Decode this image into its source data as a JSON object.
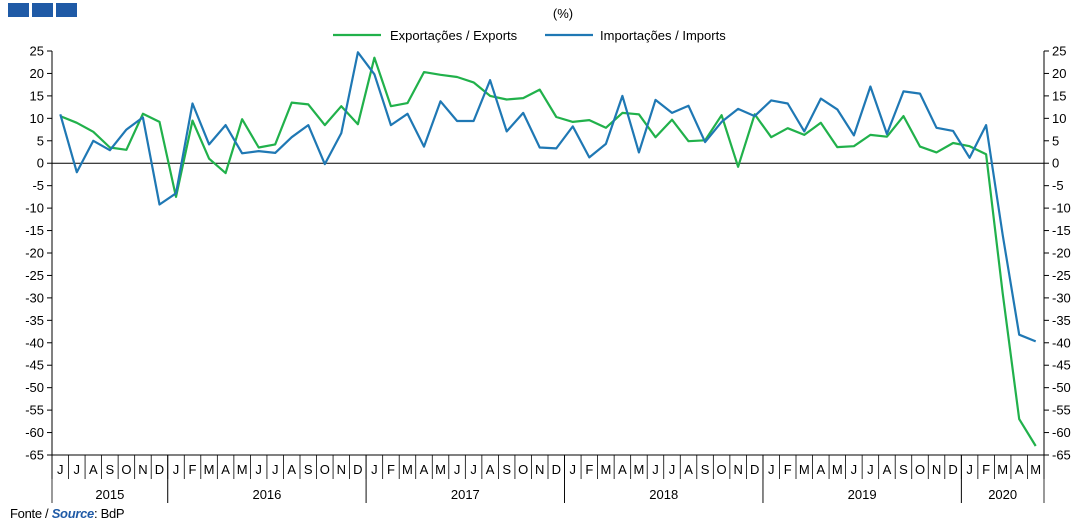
{
  "source": {
    "fonte": "Fonte / ",
    "label": "Source",
    "value": ": BdP"
  },
  "chart_data": {
    "type": "line",
    "unit_label": "(%)",
    "ylim": [
      -65,
      25
    ],
    "yticks": [
      25,
      20,
      15,
      10,
      5,
      0,
      -5,
      -10,
      -15,
      -20,
      -25,
      -30,
      -35,
      -40,
      -45,
      -50,
      -55,
      -60,
      -65
    ],
    "grid": false,
    "legend_position": "top-center",
    "month_labels": [
      "J",
      "J",
      "A",
      "S",
      "O",
      "N",
      "D",
      "J",
      "F",
      "M",
      "A",
      "M",
      "J",
      "J",
      "A",
      "S",
      "O",
      "N",
      "D",
      "J",
      "F",
      "M",
      "A",
      "M",
      "J",
      "J",
      "A",
      "S",
      "O",
      "N",
      "D",
      "J",
      "F",
      "M",
      "A",
      "M",
      "J",
      "J",
      "A",
      "S",
      "O",
      "N",
      "D",
      "J",
      "F",
      "M",
      "A",
      "M",
      "J",
      "J",
      "A",
      "S",
      "O",
      "N",
      "D",
      "J",
      "F",
      "M",
      "A",
      "M"
    ],
    "years": [
      {
        "label": "2015",
        "start": 0,
        "end": 6
      },
      {
        "label": "2016",
        "start": 7,
        "end": 18
      },
      {
        "label": "2017",
        "start": 19,
        "end": 30
      },
      {
        "label": "2018",
        "start": 31,
        "end": 42
      },
      {
        "label": "2019",
        "start": 43,
        "end": 54
      },
      {
        "label": "2020",
        "start": 55,
        "end": 59
      }
    ],
    "series": [
      {
        "name": "Exportações / Exports",
        "color": "#21b14b",
        "values": [
          10.5,
          9,
          7,
          3.5,
          3,
          11,
          9.2,
          -7.5,
          9.5,
          1,
          -2.2,
          9.8,
          3.5,
          4.2,
          13.5,
          13.1,
          8.5,
          12.7,
          8.7,
          23.5,
          12.7,
          13.4,
          20.3,
          19.7,
          19.2,
          18,
          15,
          14.2,
          14.5,
          16.4,
          10.3,
          9.2,
          9.6,
          7.9,
          11.2,
          10.9,
          5.8,
          9.7,
          4.9,
          5.1,
          10.7,
          -0.8,
          10.9,
          5.8,
          7.8,
          6.3,
          9,
          3.6,
          3.8,
          6.3,
          5.9,
          10.5,
          3.7,
          2.4,
          4.5,
          3.8,
          2,
          -29,
          -57,
          -63
        ]
      },
      {
        "name": "Importações / Imports",
        "color": "#1f78b4",
        "values": [
          10.9,
          -2,
          5,
          2.9,
          7.5,
          10.2,
          -9.2,
          -6.7,
          13.3,
          4.2,
          8.5,
          2.2,
          2.7,
          2.3,
          5.8,
          8.5,
          -0.2,
          6.7,
          24.7,
          19.8,
          8.5,
          11,
          3.7,
          13.8,
          9.4,
          9.4,
          18.5,
          7.1,
          11.2,
          3.5,
          3.3,
          8.2,
          1.3,
          4.3,
          15,
          2.4,
          14.1,
          11.2,
          12.8,
          4.7,
          9.2,
          12.1,
          10.5,
          14,
          13.3,
          7.1,
          14.4,
          12,
          6.2,
          17.1,
          6.5,
          16,
          15.5,
          7.9,
          7.2,
          1.2,
          8.5,
          -16,
          -38.2,
          -39.7
        ]
      }
    ]
  }
}
